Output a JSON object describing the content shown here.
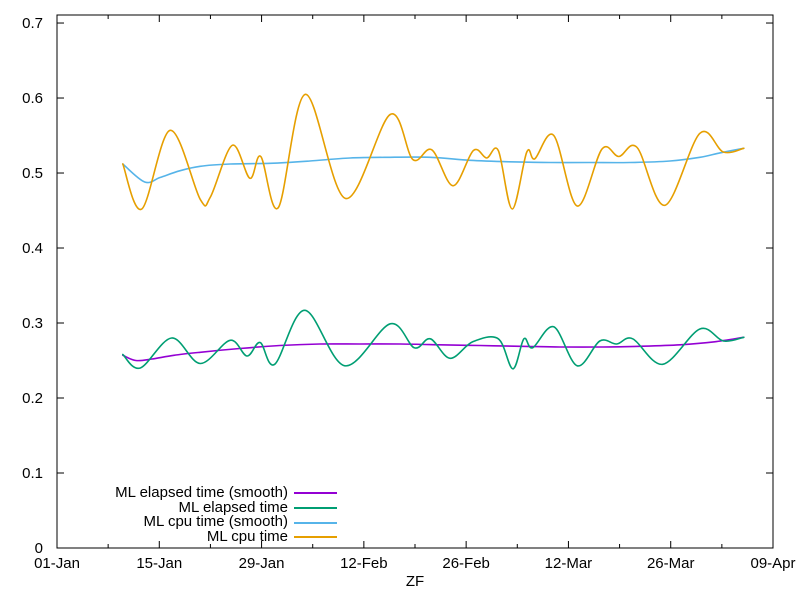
{
  "chart_data": {
    "type": "line",
    "title": "",
    "xlabel": "ZF",
    "ylabel": "",
    "grid": false,
    "legend_position": "inside bottom-left, right-aligned labels with line samples",
    "x_range_days": [
      0,
      98
    ],
    "ylim": [
      0,
      0.7107
    ],
    "x_ticks_major": [
      {
        "day": 0,
        "label": "01-Jan"
      },
      {
        "day": 14,
        "label": "15-Jan"
      },
      {
        "day": 28,
        "label": "29-Jan"
      },
      {
        "day": 42,
        "label": "12-Feb"
      },
      {
        "day": 56,
        "label": "26-Feb"
      },
      {
        "day": 70,
        "label": "12-Mar"
      },
      {
        "day": 84,
        "label": "26-Mar"
      },
      {
        "day": 98,
        "label": "09-Apr"
      }
    ],
    "x_ticks_minor_days": [
      7,
      21,
      35,
      49,
      63,
      77,
      91
    ],
    "y_ticks": [
      {
        "value": 0,
        "label": "0"
      },
      {
        "value": 0.1,
        "label": "0.1"
      },
      {
        "value": 0.2,
        "label": "0.2"
      },
      {
        "value": 0.3,
        "label": "0.3"
      },
      {
        "value": 0.4,
        "label": "0.4"
      },
      {
        "value": 0.5,
        "label": "0.5"
      },
      {
        "value": 0.6,
        "label": "0.6"
      },
      {
        "value": 0.7,
        "label": "0.7"
      }
    ],
    "series": [
      {
        "name": "ML elapsed time (smooth)",
        "color": "#9400d3",
        "points": [
          [
            9.0,
            0.257
          ],
          [
            10.8,
            0.25
          ],
          [
            13.0,
            0.252
          ],
          [
            16.0,
            0.257
          ],
          [
            19.6,
            0.261
          ],
          [
            25.0,
            0.266
          ],
          [
            30.5,
            0.27
          ],
          [
            36.0,
            0.272
          ],
          [
            41.5,
            0.272
          ],
          [
            47.0,
            0.272
          ],
          [
            52.4,
            0.271
          ],
          [
            57.9,
            0.27
          ],
          [
            63.4,
            0.269
          ],
          [
            68.8,
            0.268
          ],
          [
            74.3,
            0.268
          ],
          [
            79.8,
            0.269
          ],
          [
            85.3,
            0.271
          ],
          [
            90.0,
            0.275
          ],
          [
            94.0,
            0.281
          ]
        ]
      },
      {
        "name": "ML elapsed time",
        "color": "#009e73",
        "points": [
          [
            9.0,
            0.258
          ],
          [
            11.4,
            0.24
          ],
          [
            15.7,
            0.28
          ],
          [
            19.6,
            0.246
          ],
          [
            23.7,
            0.277
          ],
          [
            26.0,
            0.256
          ],
          [
            27.8,
            0.274
          ],
          [
            29.8,
            0.245
          ],
          [
            33.9,
            0.317
          ],
          [
            39.4,
            0.243
          ],
          [
            45.6,
            0.299
          ],
          [
            48.9,
            0.267
          ],
          [
            51.1,
            0.279
          ],
          [
            53.8,
            0.253
          ],
          [
            56.9,
            0.275
          ],
          [
            60.4,
            0.279
          ],
          [
            62.4,
            0.239
          ],
          [
            63.9,
            0.279
          ],
          [
            65.1,
            0.267
          ],
          [
            68.0,
            0.295
          ],
          [
            71.2,
            0.243
          ],
          [
            74.3,
            0.276
          ],
          [
            76.6,
            0.272
          ],
          [
            78.8,
            0.279
          ],
          [
            82.9,
            0.245
          ],
          [
            88.0,
            0.292
          ],
          [
            91.2,
            0.276
          ],
          [
            94.0,
            0.281
          ]
        ]
      },
      {
        "name": "ML cpu time (smooth)",
        "color": "#56b4e9",
        "points": [
          [
            9.0,
            0.512
          ],
          [
            12.0,
            0.488
          ],
          [
            14.1,
            0.494
          ],
          [
            16.8,
            0.503
          ],
          [
            19.6,
            0.509
          ],
          [
            23.7,
            0.512
          ],
          [
            29.2,
            0.513
          ],
          [
            34.6,
            0.516
          ],
          [
            40.1,
            0.52
          ],
          [
            45.6,
            0.521
          ],
          [
            51.1,
            0.521
          ],
          [
            56.5,
            0.517
          ],
          [
            62.0,
            0.515
          ],
          [
            67.5,
            0.514
          ],
          [
            72.9,
            0.514
          ],
          [
            78.4,
            0.514
          ],
          [
            83.9,
            0.516
          ],
          [
            88.0,
            0.521
          ],
          [
            90.8,
            0.527
          ],
          [
            94.0,
            0.533
          ]
        ]
      },
      {
        "name": "ML cpu time",
        "color": "#e69f00",
        "points": [
          [
            9.0,
            0.512
          ],
          [
            11.6,
            0.452
          ],
          [
            15.5,
            0.557
          ],
          [
            19.6,
            0.465
          ],
          [
            21.0,
            0.468
          ],
          [
            24.0,
            0.537
          ],
          [
            26.4,
            0.493
          ],
          [
            27.9,
            0.522
          ],
          [
            30.3,
            0.454
          ],
          [
            34.0,
            0.605
          ],
          [
            39.5,
            0.466
          ],
          [
            45.6,
            0.578
          ],
          [
            48.7,
            0.518
          ],
          [
            51.3,
            0.531
          ],
          [
            54.2,
            0.483
          ],
          [
            57.0,
            0.53
          ],
          [
            58.8,
            0.52
          ],
          [
            60.4,
            0.53
          ],
          [
            62.3,
            0.452
          ],
          [
            64.3,
            0.528
          ],
          [
            65.4,
            0.519
          ],
          [
            68.0,
            0.55
          ],
          [
            71.2,
            0.456
          ],
          [
            74.6,
            0.532
          ],
          [
            76.9,
            0.522
          ],
          [
            79.4,
            0.534
          ],
          [
            83.2,
            0.457
          ],
          [
            88.0,
            0.553
          ],
          [
            91.2,
            0.528
          ],
          [
            94.0,
            0.533
          ]
        ]
      }
    ]
  }
}
